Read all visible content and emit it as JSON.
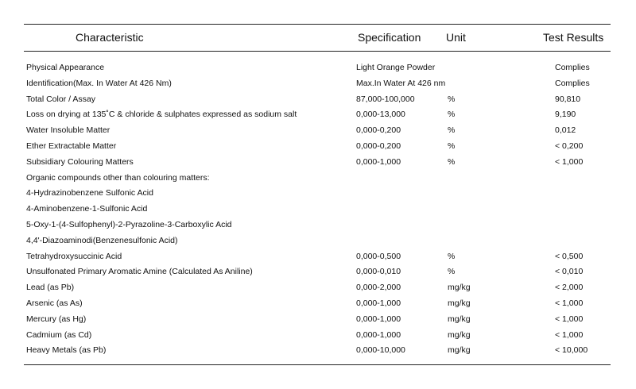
{
  "headers": {
    "characteristic": "Characteristic",
    "specification": "Specification",
    "unit": "Unit",
    "results": "Test Results"
  },
  "rows": [
    {
      "name": "Physical Appearance",
      "spec": "Light Orange Powder",
      "unit": "",
      "result": "Complies"
    },
    {
      "name": "Identification(Max. In Water At 426 Nm)",
      "spec": "Max.In Water At 426 nm",
      "unit": "",
      "result": "Complies"
    },
    {
      "name": "Total Color / Assay",
      "spec": "87,000-100,000",
      "unit": "%",
      "result": "90,810"
    },
    {
      "name": "Loss on drying at 135˚C & chloride & sulphates expressed as sodium salt",
      "spec": "0,000-13,000",
      "unit": "%",
      "result": "9,190"
    },
    {
      "name": "Water Insoluble Matter",
      "spec": "0,000-0,200",
      "unit": "%",
      "result": "0,012"
    },
    {
      "name": "Ether Extractable Matter",
      "spec": "0,000-0,200",
      "unit": "%",
      "result": "< 0,200"
    },
    {
      "name": "Subsidiary Colouring Matters",
      "spec": "0,000-1,000",
      "unit": "%",
      "result": "< 1,000"
    },
    {
      "name": "Organic compounds other than colouring matters:",
      "spec": "",
      "unit": "",
      "result": ""
    },
    {
      "name": "4-Hydrazinobenzene Sulfonic Acid",
      "spec": "",
      "unit": "",
      "result": ""
    },
    {
      "name": "4-Aminobenzene-1-Sulfonic Acid",
      "spec": "",
      "unit": "",
      "result": ""
    },
    {
      "name": "5-Oxy-1-(4-Sulfophenyl)-2-Pyrazoline-3-Carboxylic Acid",
      "spec": "",
      "unit": "",
      "result": ""
    },
    {
      "name": "4,4'-Diazoaminodi(Benzenesulfonic Acid)",
      "spec": "",
      "unit": "",
      "result": ""
    },
    {
      "name": "Tetrahydroxysuccinic Acid",
      "spec": "0,000-0,500",
      "unit": "%",
      "result": "< 0,500"
    },
    {
      "name": "Unsulfonated Primary Aromatic Amine (Calculated As Aniline)",
      "spec": "0,000-0,010",
      "unit": "%",
      "result": "< 0,010"
    },
    {
      "name": "Lead (as Pb)",
      "spec": "0,000-2,000",
      "unit": "mg/kg",
      "result": "< 2,000"
    },
    {
      "name": "Arsenic (as As)",
      "spec": "0,000-1,000",
      "unit": "mg/kg",
      "result": "< 1,000"
    },
    {
      "name": "Mercury (as Hg)",
      "spec": "0,000-1,000",
      "unit": "mg/kg",
      "result": "< 1,000"
    },
    {
      "name": "Cadmium (as Cd)",
      "spec": "0,000-1,000",
      "unit": "mg/kg",
      "result": "< 1,000"
    },
    {
      "name": "Heavy Metals (as Pb)",
      "spec": "0,000-10,000",
      "unit": "mg/kg",
      "result": "< 10,000"
    }
  ]
}
